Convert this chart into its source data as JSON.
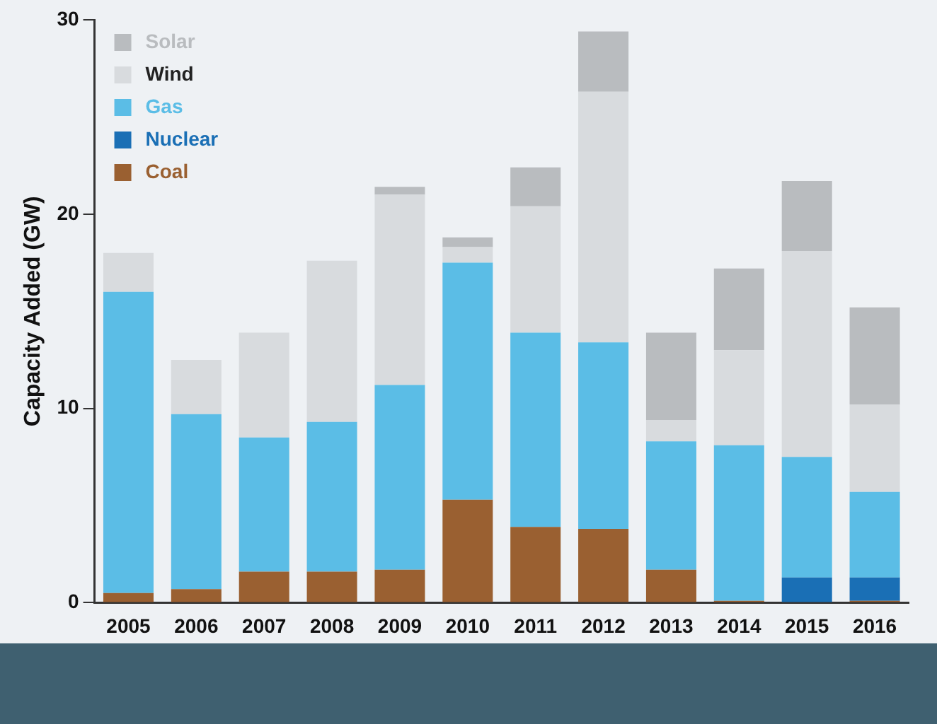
{
  "chart_data": {
    "type": "bar",
    "stacked": true,
    "ylabel": "Capacity Added (GW)",
    "categories": [
      "2005",
      "2006",
      "2007",
      "2008",
      "2009",
      "2010",
      "2011",
      "2012",
      "2013",
      "2014",
      "2015",
      "2016"
    ],
    "series": [
      {
        "name": "Coal",
        "color": "#9a6031",
        "values": [
          0.5,
          0.7,
          1.6,
          1.6,
          1.7,
          5.3,
          3.9,
          3.8,
          1.7,
          0.1,
          0,
          0.1
        ]
      },
      {
        "name": "Nuclear",
        "color": "#1a6fb5",
        "values": [
          0,
          0,
          0,
          0,
          0,
          0,
          0,
          0,
          0,
          0,
          1.3,
          1.2
        ]
      },
      {
        "name": "Gas",
        "color": "#5bbde6",
        "values": [
          15.5,
          9.0,
          6.9,
          7.7,
          9.5,
          12.2,
          10.0,
          9.6,
          6.6,
          8.0,
          6.2,
          4.4
        ]
      },
      {
        "name": "Wind",
        "color": "#d8dbde",
        "values": [
          2.0,
          2.8,
          5.4,
          8.3,
          9.8,
          0.8,
          6.5,
          12.9,
          1.1,
          4.9,
          10.6,
          4.5
        ]
      },
      {
        "name": "Solar",
        "color": "#b9bcbf",
        "values": [
          0,
          0,
          0,
          0,
          0.4,
          0.5,
          2.0,
          3.1,
          4.5,
          4.2,
          3.6,
          5.0
        ]
      }
    ],
    "ylim": [
      0,
      30
    ],
    "yticks": [
      0,
      10,
      20,
      30
    ],
    "grid": false,
    "legend": "top left"
  }
}
